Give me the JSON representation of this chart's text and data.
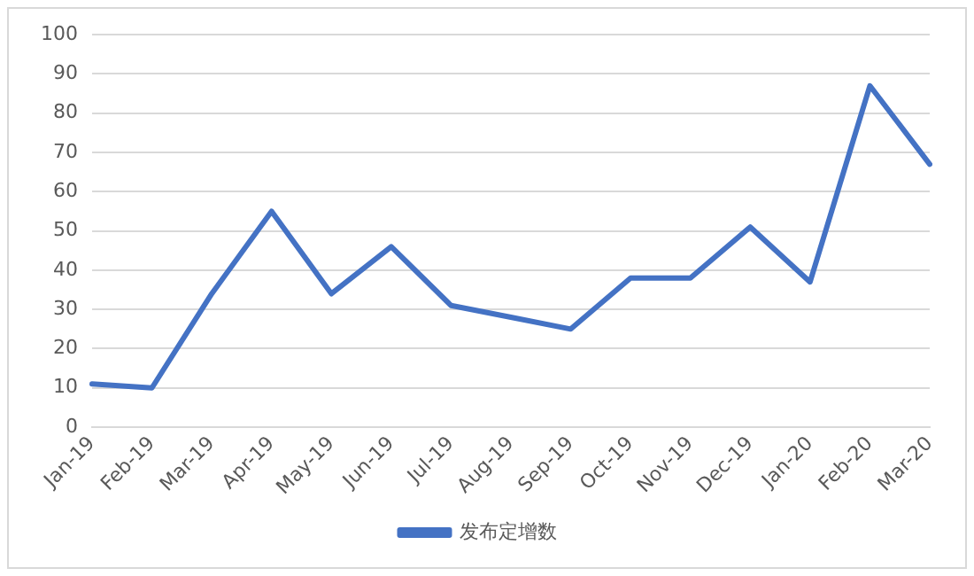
{
  "chart_data": {
    "type": "line",
    "categories": [
      "Jan-19",
      "Feb-19",
      "Mar-19",
      "Apr-19",
      "May-19",
      "Jun-19",
      "Jul-19",
      "Aug-19",
      "Sep-19",
      "Oct-19",
      "Nov-19",
      "Dec-19",
      "Jan-20",
      "Feb-20",
      "Mar-20"
    ],
    "series": [
      {
        "name": "发布定增数",
        "color": "#4472c4",
        "values": [
          11,
          10,
          34,
          55,
          34,
          46,
          31,
          28,
          25,
          38,
          38,
          51,
          37,
          87,
          67
        ]
      }
    ],
    "ylim": [
      0,
      100
    ],
    "yticks": [
      0,
      10,
      20,
      30,
      40,
      50,
      60,
      70,
      80,
      90,
      100
    ],
    "grid": "y",
    "legend": "bottom",
    "marker": "none",
    "line_style": "solid"
  }
}
